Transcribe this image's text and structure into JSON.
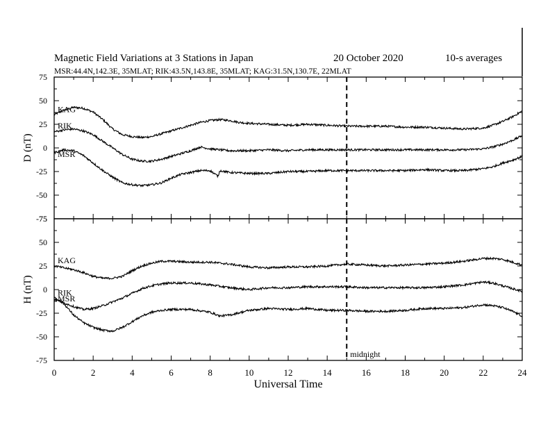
{
  "header": {
    "title": "Magnetic Field Variations at 3 Stations in Japan",
    "date": "20 October 2020",
    "averaging": "10-s averages",
    "stations": "MSR:44.4N,142.3E, 35MLAT;  RIK:43.5N,143.8E, 35MLAT;  KAG:31.5N,130.7E, 22MLAT"
  },
  "annotations": {
    "midnight": "midnight"
  },
  "chart_data": [
    {
      "type": "line",
      "panel": "D",
      "ylabel": "D (nT)",
      "ylim": [
        -75,
        75
      ],
      "yticks": [
        75,
        50,
        25,
        0,
        -25,
        -50,
        -75
      ],
      "xlim": [
        0,
        24
      ],
      "xticks": [
        0,
        2,
        4,
        6,
        8,
        10,
        12,
        14,
        16,
        18,
        20,
        22,
        24
      ],
      "xlabel": "Universal Time",
      "vline_x": 15,
      "series": [
        {
          "name": "KAG",
          "x": [
            0,
            0.5,
            1,
            1.5,
            2,
            2.5,
            3,
            3.5,
            4,
            4.5,
            5,
            5.5,
            6,
            6.5,
            7,
            7.5,
            8,
            8.5,
            9,
            9.5,
            10,
            11,
            12,
            13,
            14,
            15,
            16,
            17,
            18,
            19,
            20,
            21,
            22,
            22.5,
            23,
            23.5,
            24
          ],
          "y": [
            35,
            40,
            43,
            42,
            38,
            30,
            20,
            14,
            12,
            11,
            12,
            15,
            18,
            21,
            24,
            27,
            29,
            30,
            29,
            27,
            26,
            25,
            24,
            25,
            24,
            23,
            23,
            23,
            22,
            22,
            21,
            20,
            21,
            24,
            28,
            33,
            39
          ]
        },
        {
          "name": "RIK",
          "x": [
            0,
            0.5,
            1,
            1.5,
            2,
            2.5,
            3,
            3.5,
            4,
            4.5,
            5,
            5.5,
            6,
            6.5,
            7,
            7.5,
            8,
            8.5,
            9,
            10,
            11,
            12,
            13,
            14,
            15,
            16,
            17,
            18,
            19,
            20,
            21,
            22,
            22.5,
            23,
            23.5,
            24
          ],
          "y": [
            17,
            19,
            20,
            18,
            14,
            7,
            0,
            -7,
            -12,
            -14,
            -14,
            -12,
            -9,
            -6,
            -3,
            1,
            -1,
            -2,
            -3,
            -3,
            -2,
            -3,
            -2,
            -2,
            -2,
            -2,
            -2,
            -2,
            -2,
            -2,
            -2,
            -1,
            1,
            4,
            8,
            13
          ]
        },
        {
          "name": "MSR",
          "x": [
            0,
            0.5,
            1,
            1.5,
            2,
            2.5,
            3,
            3.5,
            4,
            4.5,
            5,
            5.5,
            6,
            6.5,
            7,
            7.5,
            8,
            8.4,
            8.5,
            9,
            10,
            11,
            12,
            13,
            14,
            15,
            16,
            17,
            18,
            19,
            20,
            21,
            22,
            22.5,
            23,
            23.5,
            24
          ],
          "y": [
            -5,
            -2,
            -3,
            -8,
            -16,
            -24,
            -31,
            -37,
            -39,
            -40,
            -39,
            -37,
            -32,
            -28,
            -26,
            -24,
            -24,
            -30,
            -24,
            -26,
            -27,
            -27,
            -25,
            -25,
            -24,
            -24,
            -24,
            -24,
            -24,
            -23,
            -24,
            -24,
            -22,
            -20,
            -16,
            -13,
            -9
          ]
        }
      ]
    },
    {
      "type": "line",
      "panel": "H",
      "ylabel": "H (nT)",
      "ylim": [
        -75,
        75
      ],
      "yticks": [
        75,
        50,
        25,
        0,
        -25,
        -50,
        -75
      ],
      "xlim": [
        0,
        24
      ],
      "xticks": [
        0,
        2,
        4,
        6,
        8,
        10,
        12,
        14,
        16,
        18,
        20,
        22,
        24
      ],
      "xlabel": "Universal Time",
      "vline_x": 15,
      "series": [
        {
          "name": "KAG",
          "x": [
            0,
            0.5,
            1,
            1.5,
            2,
            2.5,
            3,
            3.5,
            4,
            4.5,
            5,
            5.5,
            6,
            7,
            8,
            9,
            10,
            11,
            12,
            13,
            14,
            15,
            16,
            17,
            18,
            19,
            20,
            21,
            22,
            22.5,
            23,
            23.5,
            24
          ],
          "y": [
            25,
            23,
            21,
            18,
            14,
            12,
            12,
            14,
            20,
            25,
            28,
            30,
            30,
            29,
            29,
            27,
            24,
            23,
            24,
            24,
            25,
            27,
            26,
            25,
            26,
            27,
            28,
            30,
            33,
            33,
            32,
            29,
            26
          ]
        },
        {
          "name": "RIK",
          "x": [
            0,
            0.5,
            1,
            1.5,
            2,
            2.5,
            3,
            3.5,
            4,
            4.5,
            5,
            5.5,
            6,
            7,
            8,
            9,
            10,
            11,
            12,
            13,
            14,
            15,
            16,
            17,
            18,
            19,
            20,
            21,
            22,
            22.5,
            23,
            23.5,
            24
          ],
          "y": [
            -10,
            -14,
            -18,
            -21,
            -20,
            -17,
            -13,
            -9,
            -4,
            1,
            4,
            6,
            7,
            7,
            5,
            2,
            0,
            2,
            2,
            3,
            3,
            3,
            2,
            2,
            2,
            2,
            3,
            5,
            8,
            7,
            4,
            1,
            -2
          ]
        },
        {
          "name": "MSR",
          "x": [
            0,
            0.5,
            1,
            1.5,
            2,
            2.5,
            3,
            3.5,
            4,
            4.5,
            5,
            5.5,
            6,
            7,
            8,
            8.5,
            9,
            10,
            11,
            12,
            13,
            14,
            15,
            16,
            17,
            18,
            19,
            20,
            21,
            22,
            22.5,
            23,
            23.5,
            24
          ],
          "y": [
            -8,
            -15,
            -27,
            -35,
            -40,
            -43,
            -44,
            -40,
            -34,
            -28,
            -24,
            -22,
            -21,
            -21,
            -24,
            -28,
            -27,
            -22,
            -20,
            -21,
            -20,
            -22,
            -22,
            -23,
            -23,
            -22,
            -20,
            -20,
            -19,
            -16,
            -17,
            -19,
            -23,
            -28
          ]
        }
      ]
    }
  ]
}
